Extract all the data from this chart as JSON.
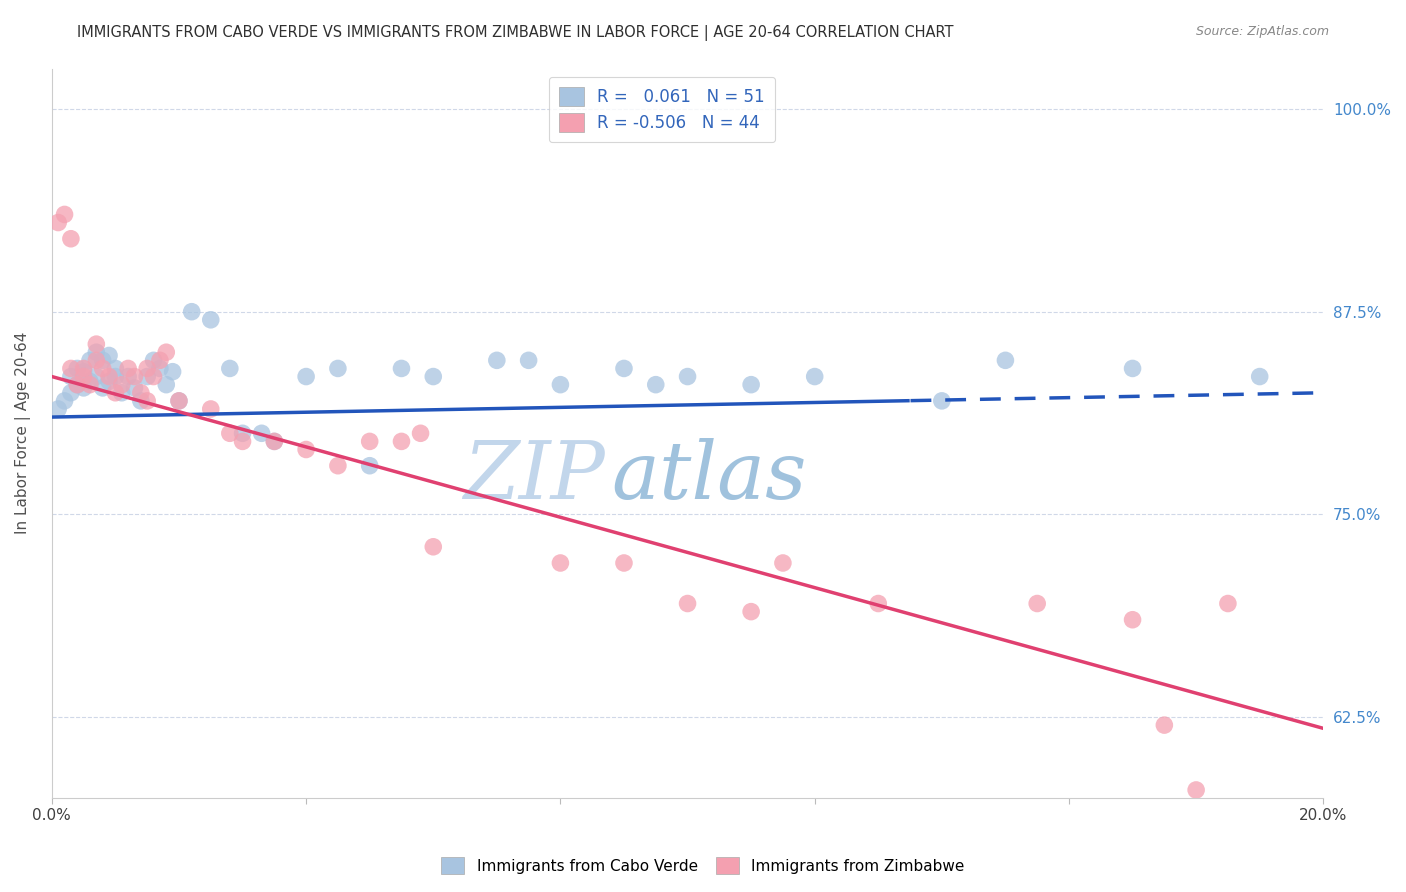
{
  "title": "IMMIGRANTS FROM CABO VERDE VS IMMIGRANTS FROM ZIMBABWE IN LABOR FORCE | AGE 20-64 CORRELATION CHART",
  "source": "Source: ZipAtlas.com",
  "ylabel": "In Labor Force | Age 20-64",
  "x_min": 0.0,
  "x_max": 0.2,
  "y_min": 0.575,
  "y_max": 1.025,
  "x_ticks": [
    0.0,
    0.04,
    0.08,
    0.12,
    0.16,
    0.2
  ],
  "y_ticks": [
    0.625,
    0.75,
    0.875,
    1.0
  ],
  "y_tick_labels": [
    "62.5%",
    "75.0%",
    "87.5%",
    "100.0%"
  ],
  "cabo_verde_color": "#a8c4e0",
  "zimbabwe_color": "#f4a0b0",
  "cabo_verde_line_color": "#2255bb",
  "zimbabwe_line_color": "#e04070",
  "R_cabo": 0.061,
  "N_cabo": 51,
  "R_zimbabwe": -0.506,
  "N_zimbabwe": 44,
  "cabo_line_x0": 0.0,
  "cabo_line_y0": 0.81,
  "cabo_line_x1": 0.2,
  "cabo_line_y1": 0.825,
  "cabo_line_solid_end": 0.135,
  "zim_line_x0": 0.0,
  "zim_line_y0": 0.835,
  "zim_line_x1": 0.2,
  "zim_line_y1": 0.618,
  "cabo_verde_scatter_x": [
    0.001,
    0.002,
    0.003,
    0.003,
    0.004,
    0.004,
    0.005,
    0.005,
    0.006,
    0.006,
    0.007,
    0.007,
    0.008,
    0.008,
    0.009,
    0.009,
    0.01,
    0.01,
    0.011,
    0.012,
    0.013,
    0.014,
    0.015,
    0.016,
    0.017,
    0.018,
    0.019,
    0.02,
    0.022,
    0.025,
    0.028,
    0.03,
    0.033,
    0.035,
    0.04,
    0.045,
    0.05,
    0.055,
    0.06,
    0.07,
    0.075,
    0.08,
    0.09,
    0.095,
    0.1,
    0.11,
    0.12,
    0.14,
    0.15,
    0.17,
    0.19
  ],
  "cabo_verde_scatter_y": [
    0.815,
    0.82,
    0.825,
    0.835,
    0.83,
    0.84,
    0.828,
    0.838,
    0.832,
    0.845,
    0.835,
    0.85,
    0.828,
    0.845,
    0.832,
    0.848,
    0.84,
    0.835,
    0.825,
    0.835,
    0.828,
    0.82,
    0.835,
    0.845,
    0.84,
    0.83,
    0.838,
    0.82,
    0.875,
    0.87,
    0.84,
    0.8,
    0.8,
    0.795,
    0.835,
    0.84,
    0.78,
    0.84,
    0.835,
    0.845,
    0.845,
    0.83,
    0.84,
    0.83,
    0.835,
    0.83,
    0.835,
    0.82,
    0.845,
    0.84,
    0.835
  ],
  "zimbabwe_scatter_x": [
    0.001,
    0.002,
    0.003,
    0.003,
    0.004,
    0.005,
    0.005,
    0.006,
    0.007,
    0.007,
    0.008,
    0.009,
    0.01,
    0.011,
    0.012,
    0.013,
    0.014,
    0.015,
    0.015,
    0.016,
    0.017,
    0.018,
    0.02,
    0.025,
    0.028,
    0.03,
    0.035,
    0.04,
    0.045,
    0.05,
    0.055,
    0.058,
    0.06,
    0.08,
    0.09,
    0.1,
    0.11,
    0.115,
    0.13,
    0.155,
    0.17,
    0.175,
    0.18,
    0.185
  ],
  "zimbabwe_scatter_y": [
    0.93,
    0.935,
    0.92,
    0.84,
    0.83,
    0.84,
    0.835,
    0.83,
    0.845,
    0.855,
    0.84,
    0.835,
    0.825,
    0.83,
    0.84,
    0.835,
    0.825,
    0.82,
    0.84,
    0.835,
    0.845,
    0.85,
    0.82,
    0.815,
    0.8,
    0.795,
    0.795,
    0.79,
    0.78,
    0.795,
    0.795,
    0.8,
    0.73,
    0.72,
    0.72,
    0.695,
    0.69,
    0.72,
    0.695,
    0.695,
    0.685,
    0.62,
    0.58,
    0.695
  ],
  "legend_label_cabo": "Immigrants from Cabo Verde",
  "legend_label_zimbabwe": "Immigrants from Zimbabwe",
  "background_color": "#ffffff",
  "grid_color": "#d0d8e8",
  "title_color": "#303030",
  "axis_label_color": "#505050",
  "tick_color_right": "#4488cc",
  "tick_color_bottom": "#404040"
}
